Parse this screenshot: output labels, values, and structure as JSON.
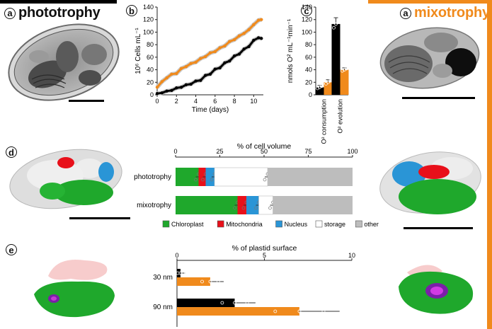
{
  "colors": {
    "phototrophy": "#000000",
    "mixotrophy": "#f08a1c",
    "chloroplast": "#1fa82c",
    "mitochondria": "#e8101a",
    "nucleus": "#2a95d6",
    "storage": "#ffffff",
    "other": "#bdbdbd"
  },
  "panels": {
    "a_left": {
      "label": "a",
      "title": "phototrophy"
    },
    "a_right": {
      "label": "a",
      "title": "mixotrophy"
    },
    "b": {
      "label": "b"
    },
    "c": {
      "label": "c"
    },
    "d": {
      "label": "d"
    },
    "e": {
      "label": "e"
    }
  },
  "chart_data": [
    {
      "id": "b",
      "type": "line",
      "title": "",
      "xlabel": "Time (days)",
      "ylabel": "10⁶ Cells mL⁻¹",
      "xlim": [
        0,
        11
      ],
      "ylim": [
        0,
        140
      ],
      "xticks": [
        "0",
        "2",
        "4",
        "6",
        "8",
        "10"
      ],
      "yticks": [
        "0",
        "20",
        "40",
        "60",
        "80",
        "100",
        "120",
        "140"
      ],
      "series": [
        {
          "name": "phototrophy",
          "color": "#000000",
          "x": [
            0,
            0.5,
            1,
            1.5,
            2,
            2.5,
            3,
            3.5,
            4,
            4.5,
            5,
            5.5,
            6,
            6.5,
            7,
            7.5,
            8,
            8.5,
            9,
            9.5,
            10,
            10.5,
            10.8
          ],
          "y": [
            2,
            3,
            6,
            7,
            11,
            12,
            16,
            17,
            22,
            23,
            31,
            33,
            41,
            43,
            51,
            54,
            62,
            65,
            73,
            77,
            87,
            91,
            90
          ]
        },
        {
          "name": "mixotrophy",
          "color": "#f08a1c",
          "x": [
            0,
            0.5,
            1,
            1.5,
            2,
            2.5,
            3,
            3.5,
            4,
            4.5,
            5,
            5.5,
            6,
            6.5,
            7,
            7.5,
            8,
            8.5,
            9,
            9.5,
            10,
            10.5,
            10.8
          ],
          "y": [
            12,
            21,
            27,
            33,
            34,
            42,
            45,
            50,
            52,
            58,
            61,
            67,
            69,
            75,
            78,
            85,
            88,
            94,
            98,
            104,
            112,
            119,
            120
          ]
        }
      ]
    },
    {
      "id": "c",
      "type": "bar",
      "title": "",
      "ylabel": "nmols O² mL⁻¹min⁻¹",
      "ylim": [
        0,
        140
      ],
      "yticks": [
        "0",
        "20",
        "40",
        "60",
        "80",
        "100",
        "120",
        "140"
      ],
      "categories": [
        "O² consumption",
        "O² evolution"
      ],
      "series": [
        {
          "name": "phototrophy",
          "color": "#000000",
          "values": [
            12,
            113
          ],
          "errors": [
            3,
            10
          ]
        },
        {
          "name": "mixotrophy",
          "color": "#f08a1c",
          "values": [
            20,
            40
          ],
          "errors": [
            4,
            3
          ]
        }
      ]
    },
    {
      "id": "d",
      "type": "bar",
      "orientation": "horizontal-stacked",
      "title": "% of cell volume",
      "xlim": [
        0,
        100
      ],
      "xticks": [
        "0",
        "25",
        "50",
        "75",
        "100"
      ],
      "categories": [
        "phototrophy",
        "mixotrophy"
      ],
      "series": [
        {
          "name": "Chloroplast",
          "color": "#1fa82c",
          "values": [
            13,
            35
          ]
        },
        {
          "name": "Mitochondria",
          "color": "#e8101a",
          "values": [
            4,
            5
          ]
        },
        {
          "name": "Nucleus",
          "color": "#2a95d6",
          "values": [
            5,
            7
          ]
        },
        {
          "name": "storage",
          "color": "#ffffff",
          "values": [
            30,
            8
          ]
        },
        {
          "name": "other",
          "color": "#bdbdbd",
          "values": [
            48,
            45
          ]
        }
      ],
      "legend": [
        "Chloroplast",
        "Mitochondria",
        "Nucleus",
        "storage",
        "other"
      ]
    },
    {
      "id": "e",
      "type": "bar",
      "orientation": "horizontal",
      "title": "% of plastid surface",
      "xlim": [
        0,
        10
      ],
      "xticks": [
        "0",
        "5",
        "10"
      ],
      "categories": [
        "30 nm",
        "90 nm"
      ],
      "series": [
        {
          "name": "phototrophy",
          "color": "#000000",
          "values": [
            0.2,
            3.3
          ]
        },
        {
          "name": "mixotrophy",
          "color": "#f08a1c",
          "values": [
            1.9,
            7.0
          ]
        }
      ]
    }
  ]
}
